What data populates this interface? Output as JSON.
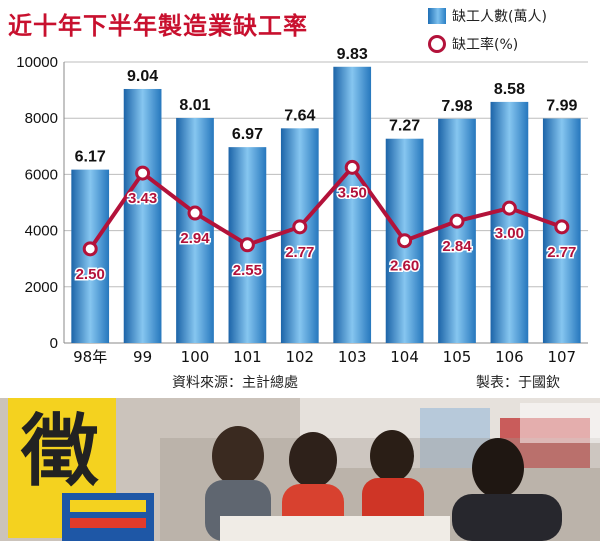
{
  "chart_data": {
    "type": "bar+line",
    "title": "近十年下半年製造業缺工率",
    "categories": [
      "98年",
      "99",
      "100",
      "101",
      "102",
      "103",
      "104",
      "105",
      "106",
      "107"
    ],
    "series": [
      {
        "name": "缺工人數(萬人)",
        "kind": "bar",
        "values": [
          6.17,
          9.04,
          8.01,
          6.97,
          7.64,
          9.83,
          7.27,
          7.98,
          8.58,
          7.99
        ]
      },
      {
        "name": "缺工率(%)",
        "kind": "line",
        "values": [
          2.5,
          3.43,
          2.94,
          2.55,
          2.77,
          3.5,
          2.6,
          2.84,
          3.0,
          2.77
        ]
      }
    ],
    "bar_labels": [
      "6.17",
      "9.04",
      "8.01",
      "6.97",
      "7.64",
      "9.83",
      "7.27",
      "7.98",
      "8.58",
      "7.99"
    ],
    "line_labels": [
      "2.50",
      "3.43",
      "2.94",
      "2.55",
      "2.77",
      "3.50",
      "2.60",
      "2.84",
      "3.00",
      "2.77"
    ],
    "y_ticks": [
      "0",
      "2000",
      "4000",
      "6000",
      "8000",
      "10000"
    ],
    "ylim": [
      0,
      10000
    ],
    "grid": true,
    "legend_position": "top-right"
  },
  "legend": {
    "bar_label": "缺工人數(萬人)",
    "line_label": "缺工率(%)"
  },
  "footer": {
    "source": "資料來源：主計總處",
    "maker": "製表：于國欽"
  },
  "colors": {
    "bar": "#2a7fc4",
    "bar_light": "#8fcaf0",
    "line": "#b3123a",
    "title": "#c8102e"
  },
  "photo": {
    "sign_char": "徵"
  }
}
